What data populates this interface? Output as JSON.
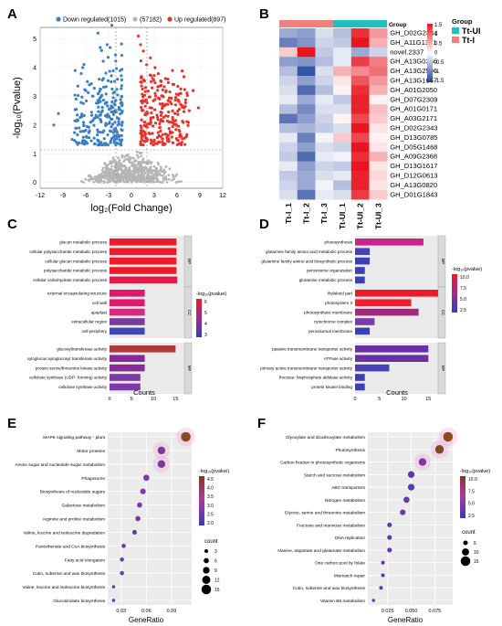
{
  "panels": {
    "a": {
      "letter": "A",
      "legend": [
        "Down regulated(1015)",
        "(57182)",
        "Up regulated(897)"
      ],
      "colors": {
        "down": "#3b7fc4",
        "ns": "#b5b5b5",
        "up": "#e6332a"
      },
      "xlabel": "log₂(Fold Change)",
      "ylabel": "-log₁₀(Pvalue)",
      "xticks": [
        "-12",
        "-9",
        "-6",
        "-3",
        "0",
        "3",
        "6",
        "9",
        "12"
      ],
      "yticks": [
        "0",
        "1",
        "2",
        "3",
        "4",
        "5"
      ]
    },
    "b": {
      "letter": "B",
      "group_title": "Group",
      "legend_title": "Group",
      "groups": [
        "Tt-UI",
        "Tt-I"
      ],
      "colors": {
        "tt_ui": "#1fbfbf",
        "tt_i": "#f08080"
      },
      "scale_ticks": [
        "1.5",
        "1",
        "0.5",
        "0",
        "-0.5",
        "-1",
        "-1.5"
      ],
      "genes": [
        "GH_D02G2344",
        "GH_A11G1321",
        "novel.2337",
        "GH_A13G0356",
        "GH_A13G2506",
        "GH_A13G1667",
        "GH_A01G2050",
        "GH_D07G2309",
        "GH_A01G0171",
        "GH_A03G2171",
        "GH_D02G2343",
        "GH_D13G0785",
        "GH_D05G1468",
        "GH_A09G2368",
        "GH_D13G1617",
        "GH_D12G0613",
        "GH_A13G0820",
        "GH_D01G1843"
      ],
      "samples": [
        "Tt-I_1",
        "Tt-I_2",
        "Tt-I_3",
        "Tt-UI_1",
        "Tt-UI_2",
        "Tt-UI_3"
      ]
    },
    "c": {
      "letter": "C",
      "xlabel": "Counts",
      "legend_title": "-log₁₀(pvalue)",
      "legend_ticks": [
        "6",
        "5",
        "4",
        "3"
      ],
      "xticks": [
        "0",
        "5",
        "10",
        "15"
      ],
      "sections": [
        "BP",
        "CC",
        "MF"
      ],
      "terms": [
        {
          "label": "glucan metabolic process",
          "count": 15.2,
          "color": "#ee1a2a"
        },
        {
          "label": "cellular polysaccharide metabolic process",
          "count": 15.2,
          "color": "#ee1a2a"
        },
        {
          "label": "cellular glucan metabolic process",
          "count": 15.2,
          "color": "#ee1a2a"
        },
        {
          "label": "polysaccharide metabolic process",
          "count": 15.2,
          "color": "#ee1a2a"
        },
        {
          "label": "cellular carbohydrate metabolic process",
          "count": 15.4,
          "color": "#e8184a"
        },
        {
          "label": "external encapsulating structure",
          "count": 8,
          "color": "#e0186a"
        },
        {
          "label": "cell wall",
          "count": 8,
          "color": "#e0186a"
        },
        {
          "label": "apoplast",
          "count": 8,
          "color": "#d22c7c"
        },
        {
          "label": "extracellular region",
          "count": 8,
          "color": "#7a3aa0"
        },
        {
          "label": "cell periphery",
          "count": 8,
          "color": "#3b48b8"
        },
        {
          "label": "glucosyltransferase activity",
          "count": 15,
          "color": "#b03a3a"
        },
        {
          "label": "xyloglucan:xyloglucosyl transferase activity",
          "count": 8,
          "color": "#8a2a9a"
        },
        {
          "label": "protein serine/threonine kinase activity",
          "count": 8,
          "color": "#8a2a9a"
        },
        {
          "label": "cellulose synthase (UDP- forming) activity",
          "count": 7,
          "color": "#7a3aa8"
        },
        {
          "label": "cellulose synthase activity",
          "count": 7,
          "color": "#7a3aa8"
        }
      ]
    },
    "d": {
      "letter": "D",
      "xlabel": "Counts",
      "legend_title": "-log₁₀(pvalue)",
      "legend_ticks": [
        "10.0",
        "7.5",
        "5.0",
        "2.5"
      ],
      "xticks": [
        "0",
        "5",
        "10",
        "15"
      ],
      "sections": [
        "BP",
        "CC",
        "MF"
      ],
      "terms": [
        {
          "label": "photosynthesis",
          "count": 14,
          "color": "#c8258c"
        },
        {
          "label": "glutamine family amino acid metabolic process",
          "count": 3,
          "color": "#4a3fb6"
        },
        {
          "label": "glutamine family amino acid biosynthetic process",
          "count": 3,
          "color": "#3b40b8"
        },
        {
          "label": "peroxisome organization",
          "count": 2,
          "color": "#3b40b8"
        },
        {
          "label": "glutamine metabolic process",
          "count": 2,
          "color": "#3b40b8"
        },
        {
          "label": "thylakoid part",
          "count": 17,
          "color": "#ee1a2a"
        },
        {
          "label": "photosystem II",
          "count": 11.5,
          "color": "#ee2030"
        },
        {
          "label": "photosynthetic membrane",
          "count": 13,
          "color": "#a02a7a"
        },
        {
          "label": "cytochrome complex",
          "count": 4,
          "color": "#7a3aa8"
        },
        {
          "label": "peroxisomal membrane",
          "count": 3,
          "color": "#3b40b8"
        },
        {
          "label": "passive transmembrane transporter activity",
          "count": 15,
          "color": "#6a30a6"
        },
        {
          "label": "ATPase activity",
          "count": 15,
          "color": "#6a30a6"
        },
        {
          "label": "primary active transmembrane transporter activity",
          "count": 7,
          "color": "#4a40b8"
        },
        {
          "label": "fructose- bisphosphate aldolase activity",
          "count": 2,
          "color": "#3b40b8"
        },
        {
          "label": "protein kinase binding",
          "count": 2,
          "color": "#3b40b8"
        }
      ]
    },
    "e": {
      "letter": "E",
      "xlabel": "GeneRatio",
      "legend_title": "-log₁₀(pvalue)",
      "legend_ticks": [
        "4.5",
        "4.0",
        "3.5",
        "3.0",
        "2.5",
        "2.0"
      ],
      "count_title": "count",
      "count_ticks": [
        "3",
        "6",
        "9",
        "12",
        "15"
      ],
      "xticks": [
        "0.03",
        "0.06",
        "0.09"
      ],
      "terms": [
        {
          "label": "MAPK signaling pathway - plant",
          "ratio": 0.107,
          "count": 15,
          "color": "#8b4a1e"
        },
        {
          "label": "Motor proteins",
          "ratio": 0.078,
          "count": 11,
          "color": "#7a3a9a"
        },
        {
          "label": "Amino sugar and nucleotide sugar metabolism",
          "ratio": 0.078,
          "count": 11,
          "color": "#7a3a9a"
        },
        {
          "label": "Phagosome",
          "ratio": 0.06,
          "count": 8,
          "color": "#7a3aa8"
        },
        {
          "label": "Biosynthesis of nucleotide sugars",
          "ratio": 0.056,
          "count": 7,
          "color": "#7a3aa8"
        },
        {
          "label": "Galactose metabolism",
          "ratio": 0.052,
          "count": 6,
          "color": "#7a3aa8"
        },
        {
          "label": "Arginine and proline metabolism",
          "ratio": 0.05,
          "count": 6,
          "color": "#7a3aa8"
        },
        {
          "label": "Valine, leucine and isoleucine degradation",
          "ratio": 0.046,
          "count": 5,
          "color": "#6a3aa8"
        },
        {
          "label": "Pantothenate and CoA biosynthesis",
          "ratio": 0.033,
          "count": 4,
          "color": "#6a3aa8"
        },
        {
          "label": "Fatty acid elongation",
          "ratio": 0.031,
          "count": 4,
          "color": "#6a3aa8"
        },
        {
          "label": "Cutin, suberine and wax biosynthesis",
          "ratio": 0.031,
          "count": 4,
          "color": "#6a3aa8"
        },
        {
          "label": "Valine, leucine and isoleucine biosynthesis",
          "ratio": 0.021,
          "count": 2,
          "color": "#5a3aa8"
        },
        {
          "label": "Glucosinolate biosynthesis",
          "ratio": 0.021,
          "count": 2,
          "color": "#5a3aa8"
        }
      ]
    },
    "f": {
      "letter": "F",
      "xlabel": "GeneRatio",
      "legend_title": "-log₁₀(pvalue)",
      "legend_ticks": [
        "10.0",
        "7.5",
        "5.0",
        "2.5"
      ],
      "count_title": "count",
      "count_ticks": [
        "5",
        "10",
        "15"
      ],
      "xticks": [
        "0.025",
        "0.050",
        "0.075"
      ],
      "terms": [
        {
          "label": "Glyoxylate and dicarboxylate metabolism",
          "ratio": 0.089,
          "count": 15,
          "color": "#8b4a1e"
        },
        {
          "label": "Photosynthesis",
          "ratio": 0.08,
          "count": 13,
          "color": "#7a4a20"
        },
        {
          "label": "Carbon fixation in photosynthetic organisms",
          "ratio": 0.062,
          "count": 11,
          "color": "#7a3a9a"
        },
        {
          "label": "Starch and sucrose metabolism",
          "ratio": 0.05,
          "count": 9,
          "color": "#5a3aa8"
        },
        {
          "label": "ABC transporters",
          "ratio": 0.05,
          "count": 9,
          "color": "#5a3aa8"
        },
        {
          "label": "Nitrogen metabolism",
          "ratio": 0.045,
          "count": 8,
          "color": "#6a3aa8"
        },
        {
          "label": "Glycine, serine and threonine metabolism",
          "ratio": 0.041,
          "count": 7,
          "color": "#6a3aa8"
        },
        {
          "label": "Fructose and mannose metabolism",
          "ratio": 0.027,
          "count": 5,
          "color": "#5a3aa8"
        },
        {
          "label": "DNA replication",
          "ratio": 0.027,
          "count": 5,
          "color": "#5a3aa8"
        },
        {
          "label": "Alanine, aspartate and glutamate metabolism",
          "ratio": 0.027,
          "count": 5,
          "color": "#5a3aa8"
        },
        {
          "label": "One carbon pool by folate",
          "ratio": 0.02,
          "count": 3,
          "color": "#5a3aa8"
        },
        {
          "label": "Mismatch repair",
          "ratio": 0.02,
          "count": 3,
          "color": "#5a3aa8"
        },
        {
          "label": "Cutin, suberine and wax biosynthesis",
          "ratio": 0.018,
          "count": 3,
          "color": "#5a3aa8"
        },
        {
          "label": "Vitamin B6 metabolism",
          "ratio": 0.01,
          "count": 2,
          "color": "#5a3aa8"
        }
      ]
    }
  }
}
